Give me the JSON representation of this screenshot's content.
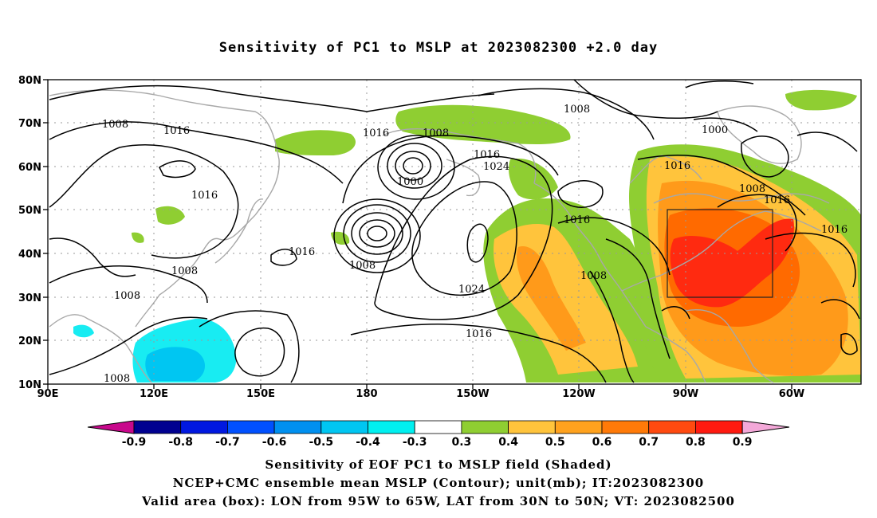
{
  "title": "Sensitivity of PC1 to MSLP at 2023082300 +2.0 day",
  "map": {
    "lon_ticks": [
      "90E",
      "120E",
      "150E",
      "180",
      "150W",
      "120W",
      "90W",
      "60W"
    ],
    "lat_ticks": [
      "80N",
      "70N",
      "60N",
      "50N",
      "40N",
      "30N",
      "20N",
      "10N"
    ],
    "contour_labels": [
      {
        "text": "1008"
      },
      {
        "text": "1016"
      },
      {
        "text": "1016"
      },
      {
        "text": "1008"
      },
      {
        "text": "1000"
      },
      {
        "text": "1016"
      },
      {
        "text": "1024"
      },
      {
        "text": "1008"
      },
      {
        "text": "1000"
      },
      {
        "text": "1016"
      },
      {
        "text": "1016"
      },
      {
        "text": "1016"
      },
      {
        "text": "1008"
      },
      {
        "text": "1008"
      },
      {
        "text": "1016"
      },
      {
        "text": "1008"
      },
      {
        "text": "1024"
      },
      {
        "text": "1016"
      },
      {
        "text": "1008"
      },
      {
        "text": "1016"
      },
      {
        "text": "1008"
      },
      {
        "text": "1008"
      }
    ],
    "valid_box": {
      "lon_from": "95W",
      "lon_to": "65W",
      "lat_from": "30N",
      "lat_to": "50N"
    },
    "colors": {
      "green": "#8fce32",
      "yellow": "#ffc43c",
      "orange": "#ff9a1a",
      "darkorange": "#ff6a00",
      "red": "#ff2a10",
      "cyan": "#18ecf2",
      "lightblue": "#00c6f2",
      "land": "#a8a8a8"
    }
  },
  "colorbar": {
    "labels": [
      "-0.9",
      "-0.8",
      "-0.7",
      "-0.6",
      "-0.5",
      "-0.4",
      "-0.3",
      "0.3",
      "0.4",
      "0.5",
      "0.6",
      "0.7",
      "0.8",
      "0.9"
    ],
    "colors": [
      "#000090",
      "#0018e0",
      "#0050ff",
      "#0090f0",
      "#00c6f2",
      "#00f0f0",
      "#ffffff",
      "#8fce32",
      "#ffc43c",
      "#ffa21e",
      "#ff7a08",
      "#ff4a10",
      "#ff1a10"
    ],
    "low_arrow": "#c8088c",
    "high_arrow": "#f3a8d8"
  },
  "footer": {
    "line1": "Sensitivity of EOF PC1 to MSLP field (Shaded)",
    "line2": "NCEP+CMC ensemble mean MSLP (Contour); unit(mb); IT:2023082300",
    "line3": "Valid area (box): LON from 95W to 65W, LAT from 30N to 50N; VT: 2023082500"
  }
}
